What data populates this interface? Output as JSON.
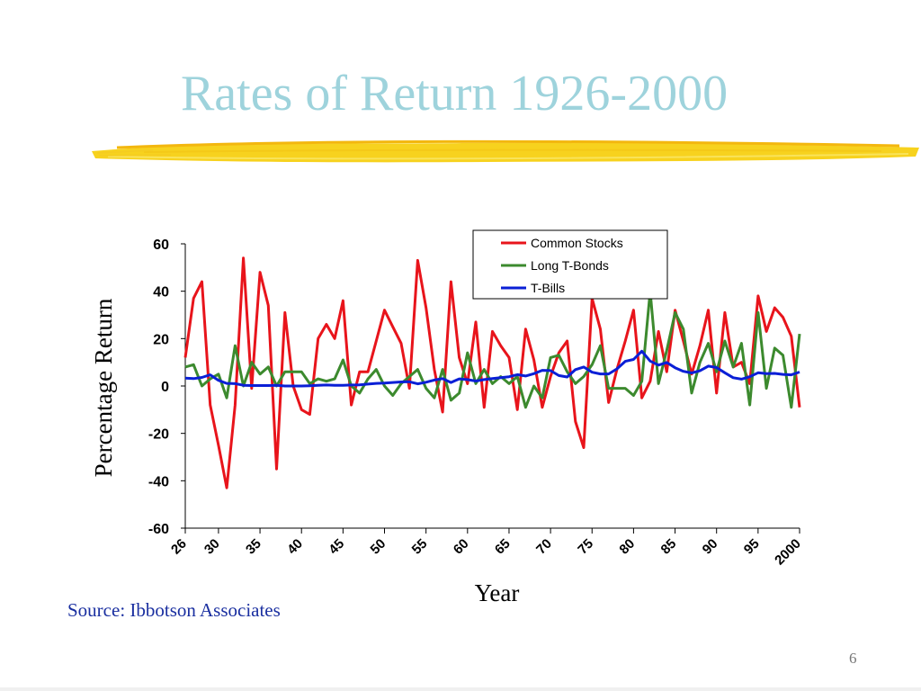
{
  "slide": {
    "title": "Rates of Return 1926-2000",
    "source": "Source: Ibbotson Associates",
    "page_number": "6"
  },
  "chart_data": {
    "type": "line",
    "title": "",
    "xlabel": "Year",
    "ylabel": "Percentage Return",
    "ylim": [
      -60,
      60
    ],
    "yticks": [
      60,
      40,
      20,
      0,
      -20,
      -40,
      -60
    ],
    "xlim": [
      1926,
      2000
    ],
    "xticks": [
      {
        "year": 1926,
        "label": "26"
      },
      {
        "year": 1930,
        "label": "30"
      },
      {
        "year": 1935,
        "label": "35"
      },
      {
        "year": 1940,
        "label": "40"
      },
      {
        "year": 1945,
        "label": "45"
      },
      {
        "year": 1950,
        "label": "50"
      },
      {
        "year": 1955,
        "label": "55"
      },
      {
        "year": 1960,
        "label": "60"
      },
      {
        "year": 1965,
        "label": "65"
      },
      {
        "year": 1970,
        "label": "70"
      },
      {
        "year": 1975,
        "label": "75"
      },
      {
        "year": 1980,
        "label": "80"
      },
      {
        "year": 1985,
        "label": "85"
      },
      {
        "year": 1990,
        "label": "90"
      },
      {
        "year": 1995,
        "label": "95"
      },
      {
        "year": 2000,
        "label": "2000"
      }
    ],
    "grid": false,
    "legend_position": "top-right",
    "x": [
      1926,
      1927,
      1928,
      1929,
      1930,
      1931,
      1932,
      1933,
      1934,
      1935,
      1936,
      1937,
      1938,
      1939,
      1940,
      1941,
      1942,
      1943,
      1944,
      1945,
      1946,
      1947,
      1948,
      1949,
      1950,
      1951,
      1952,
      1953,
      1954,
      1955,
      1956,
      1957,
      1958,
      1959,
      1960,
      1961,
      1962,
      1963,
      1964,
      1965,
      1966,
      1967,
      1968,
      1969,
      1970,
      1971,
      1972,
      1973,
      1974,
      1975,
      1976,
      1977,
      1978,
      1979,
      1980,
      1981,
      1982,
      1983,
      1984,
      1985,
      1986,
      1987,
      1988,
      1989,
      1990,
      1991,
      1992,
      1993,
      1994,
      1995,
      1996,
      1997,
      1998,
      1999,
      2000
    ],
    "series": [
      {
        "name": "Common Stocks",
        "color": "#e8141b",
        "values": [
          12,
          37,
          44,
          -8,
          -25,
          -43,
          -8,
          54,
          -1,
          48,
          34,
          -35,
          31,
          0,
          -10,
          -12,
          20,
          26,
          20,
          36,
          -8,
          6,
          6,
          19,
          32,
          25,
          18,
          -1,
          53,
          33,
          7,
          -11,
          44,
          12,
          1,
          27,
          -9,
          23,
          17,
          12,
          -10,
          24,
          11,
          -9,
          4,
          14,
          19,
          -15,
          -26,
          37,
          24,
          -7,
          7,
          19,
          32,
          -5,
          2,
          23,
          6,
          32,
          19,
          5,
          17,
          32,
          -3,
          31,
          8,
          10,
          1,
          38,
          23,
          33,
          29,
          21,
          -9
        ]
      },
      {
        "name": "Long T-Bonds",
        "color": "#3c8a2e",
        "values": [
          8,
          9,
          0,
          3,
          5,
          -5,
          17,
          0,
          10,
          5,
          8,
          0,
          6,
          6,
          6,
          1,
          3,
          2,
          3,
          11,
          0,
          -3,
          3,
          7,
          0,
          -4,
          1,
          4,
          7,
          -1,
          -5,
          7,
          -6,
          -3,
          14,
          1,
          7,
          1,
          4,
          1,
          4,
          -9,
          0,
          -5,
          12,
          13,
          6,
          1,
          4,
          9,
          17,
          -1,
          -1,
          -1,
          -4,
          2,
          40,
          1,
          15,
          31,
          24,
          -3,
          10,
          18,
          6,
          19,
          8,
          18,
          -8,
          31,
          -1,
          16,
          13,
          -9,
          22
        ]
      },
      {
        "name": "T-Bills",
        "color": "#0a1fd6",
        "values": [
          3.3,
          3.1,
          3.6,
          4.7,
          2.4,
          1.1,
          1,
          0.3,
          0.2,
          0.2,
          0.2,
          0.3,
          0,
          0,
          0,
          0.1,
          0.3,
          0.4,
          0.3,
          0.3,
          0.4,
          0.5,
          0.8,
          1.1,
          1.2,
          1.5,
          1.7,
          1.8,
          0.9,
          1.6,
          2.5,
          3.1,
          1.5,
          3,
          2.7,
          2.1,
          2.7,
          3.1,
          3.5,
          3.9,
          4.8,
          4.2,
          5.2,
          6.6,
          6.5,
          4.4,
          3.8,
          6.9,
          8,
          5.8,
          5.1,
          5.1,
          7.2,
          10.4,
          11.2,
          14.7,
          10.5,
          8.8,
          9.9,
          7.7,
          6.2,
          5.5,
          6.4,
          8.4,
          7.8,
          5.6,
          3.5,
          2.9,
          3.9,
          5.6,
          5.2,
          5.3,
          4.9,
          4.7,
          5.9
        ]
      }
    ]
  }
}
